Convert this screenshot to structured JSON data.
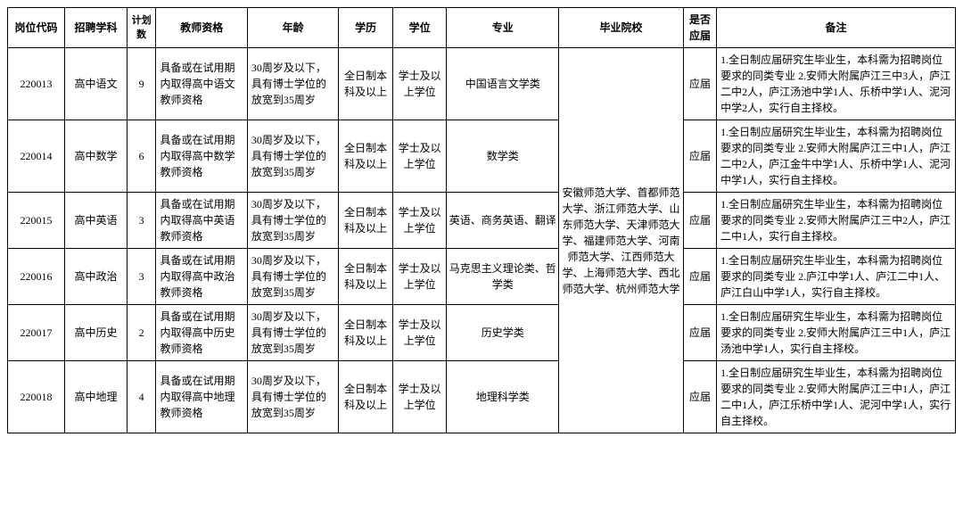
{
  "headers": {
    "code": "岗位代码",
    "subject": "招聘学科",
    "count": "计划数",
    "qual": "教师资格",
    "age": "年龄",
    "edu": "学历",
    "degree": "学位",
    "major": "专业",
    "school": "毕业院校",
    "fresh": "是否应届",
    "remark": "备注"
  },
  "school_merged": "安徽师范大学、首都师范大学、浙江师范大学、山东师范大学、天津师范大学、福建师范大学、河南师范大学、江西师范大学、上海师范大学、西北师范大学、杭州师范大学",
  "rows": [
    {
      "code": "220013",
      "subject": "高中语文",
      "count": "9",
      "qual": "具备或在试用期内取得高中语文教师资格",
      "age": "30周岁及以下，具有博士学位的放宽到35周岁",
      "edu": "全日制本科及以上",
      "degree": "学士及以上学位",
      "major": "中国语言文学类",
      "fresh": "应届",
      "remark": "1.全日制应届研究生毕业生，本科需为招聘岗位要求的同类专业\n2.安师大附属庐江三中3人，庐江二中2人，庐江汤池中学1人、乐桥中学1人、泥河中学2人，实行自主择校。"
    },
    {
      "code": "220014",
      "subject": "高中数学",
      "count": "6",
      "qual": "具备或在试用期内取得高中数学教师资格",
      "age": "30周岁及以下，具有博士学位的放宽到35周岁",
      "edu": "全日制本科及以上",
      "degree": "学士及以上学位",
      "major": "数学类",
      "fresh": "应届",
      "remark": "1.全日制应届研究生毕业生，本科需为招聘岗位要求的同类专业\n2.安师大附属庐江三中1人，庐江二中2人，庐江金牛中学1人、乐桥中学1人、泥河中学1人，实行自主择校。"
    },
    {
      "code": "220015",
      "subject": "高中英语",
      "count": "3",
      "qual": "具备或在试用期内取得高中英语教师资格",
      "age": "30周岁及以下，具有博士学位的放宽到35周岁",
      "edu": "全日制本科及以上",
      "degree": "学士及以上学位",
      "major": "英语、商务英语、翻译",
      "fresh": "应届",
      "remark": "1.全日制应届研究生毕业生，本科需为招聘岗位要求的同类专业\n2.安师大附属庐江三中2人，庐江二中1人，实行自主择校。"
    },
    {
      "code": "220016",
      "subject": "高中政治",
      "count": "3",
      "qual": "具备或在试用期内取得高中政治教师资格",
      "age": "30周岁及以下，具有博士学位的放宽到35周岁",
      "edu": "全日制本科及以上",
      "degree": "学士及以上学位",
      "major": "马克思主义理论类、哲学类",
      "fresh": "应届",
      "remark": "1.全日制应届研究生毕业生，本科需为招聘岗位要求的同类专业\n2.庐江中学1人、庐江二中1人、庐江白山中学1人，实行自主择校。"
    },
    {
      "code": "220017",
      "subject": "高中历史",
      "count": "2",
      "qual": "具备或在试用期内取得高中历史教师资格",
      "age": "30周岁及以下，具有博士学位的放宽到35周岁",
      "edu": "全日制本科及以上",
      "degree": "学士及以上学位",
      "major": "历史学类",
      "fresh": "应届",
      "remark": "1.全日制应届研究生毕业生，本科需为招聘岗位要求的同类专业\n2.安师大附属庐江三中1人，庐江汤池中学1人，实行自主择校。"
    },
    {
      "code": "220018",
      "subject": "高中地理",
      "count": "4",
      "qual": "具备或在试用期内取得高中地理教师资格",
      "age": "30周岁及以下，具有博士学位的放宽到35周岁",
      "edu": "全日制本科及以上",
      "degree": "学士及以上学位",
      "major": "地理科学类",
      "fresh": "应届",
      "remark": "1.全日制应届研究生毕业生，本科需为招聘岗位要求的同类专业\n2.安师大附属庐江三中1人，庐江二中1人，庐江乐桥中学1人、泥河中学1人，实行自主择校。"
    }
  ]
}
